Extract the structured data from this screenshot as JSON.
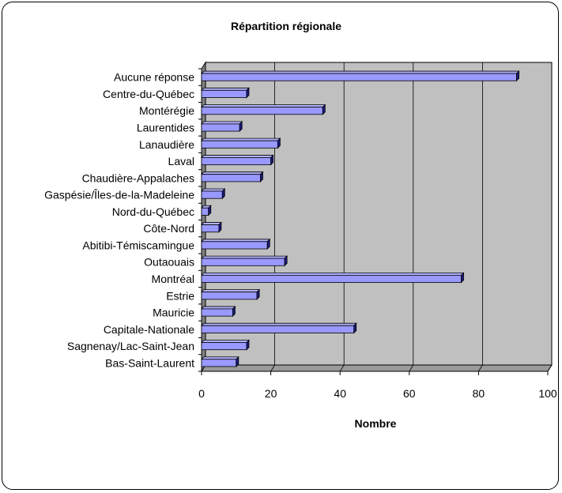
{
  "chart_data": {
    "type": "bar",
    "orientation": "horizontal",
    "title": "Répartition régionale",
    "xlabel": "Nombre",
    "ylabel": "",
    "xlim": [
      0,
      100
    ],
    "xticks": [
      0,
      20,
      40,
      60,
      80,
      100
    ],
    "categories": [
      "Aucune réponse",
      "Centre-du-Québec",
      "Montérégie",
      "Laurentides",
      "Lanaudière",
      "Laval",
      "Chaudière-Appalaches",
      "Gaspésie/Îles-de-la-Madeleine",
      "Nord-du-Québec",
      "Côte-Nord",
      "Abitibi-Témiscamingue",
      "Outaouais",
      "Montréal",
      "Estrie",
      "Mauricie",
      "Capitale-Nationale",
      "Sagnenay/Lac-Saint-Jean",
      "Bas-Saint-Laurent"
    ],
    "values": [
      91,
      13,
      35,
      11,
      22,
      20,
      17,
      6,
      2,
      5,
      19,
      24,
      75,
      16,
      9,
      44,
      13,
      10
    ],
    "grid": true,
    "legend": "none",
    "colors": {
      "bar_face": "#9999ff",
      "bar_top": "#b3b3ff",
      "bar_side": "#1a1a80",
      "plot_back": "#c0c0c0",
      "plot_side": "#808080",
      "plot_floor": "#9a9a9a",
      "gridline": "#000000"
    }
  }
}
